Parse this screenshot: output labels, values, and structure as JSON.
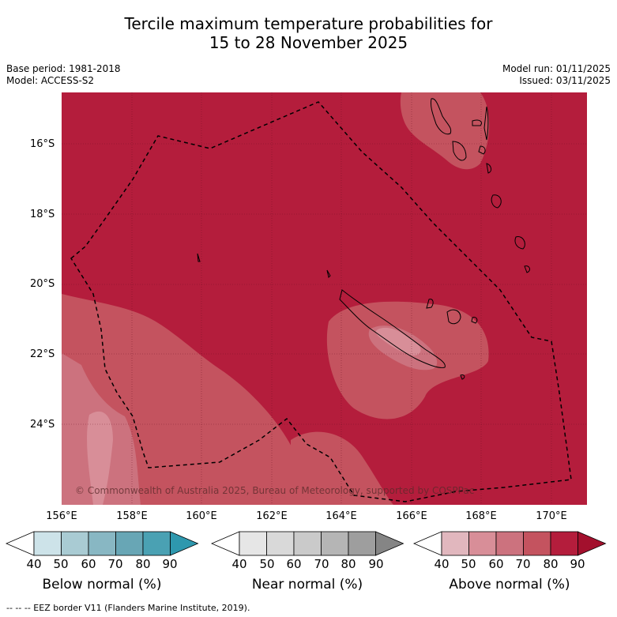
{
  "title_line1": "Tercile maximum temperature probabilities for",
  "title_line2": "15 to 28 November 2025",
  "meta_left": {
    "base_period": "Base period: 1981-2018",
    "model": "Model: ACCESS-S2"
  },
  "meta_right": {
    "model_run": "Model run: 01/11/2025",
    "issued": "Issued: 03/11/2025"
  },
  "latitude_labels": [
    "16°S",
    "18°S",
    "20°S",
    "22°S",
    "24°S"
  ],
  "longitude_labels": [
    "156°E",
    "158°E",
    "160°E",
    "162°E",
    "164°E",
    "166°E",
    "168°E",
    "170°E"
  ],
  "copyright": "© Commonwealth of Australia 2025, Bureau of Meteorology, supported by COSPPac",
  "colorbars": [
    {
      "label": "Below normal (%)",
      "ticks": [
        "40",
        "50",
        "60",
        "70",
        "80",
        "90"
      ],
      "colors": [
        "#ffffff",
        "#cde3e9",
        "#a9cbd3",
        "#88b7c3",
        "#68a6b5",
        "#4aa1b3",
        "#2e98ae"
      ]
    },
    {
      "label": "Near normal (%)",
      "ticks": [
        "40",
        "50",
        "60",
        "70",
        "80",
        "90"
      ],
      "colors": [
        "#ffffff",
        "#e6e6e6",
        "#d9d9d9",
        "#cacaca",
        "#b5b5b5",
        "#9e9e9e",
        "#858585"
      ]
    },
    {
      "label": "Above normal (%)",
      "ticks": [
        "40",
        "50",
        "60",
        "70",
        "80",
        "90"
      ],
      "colors": [
        "#ffffff",
        "#e1b7be",
        "#d88e98",
        "#cc727e",
        "#c4535f",
        "#b41d3c",
        "#a3102d"
      ]
    }
  ],
  "footnote": "--  --  -- EEZ border V11 (Flanders Marine Institute, 2019).",
  "map_colors": {
    "dominant": "#b41d3c",
    "level70": "#c4535f",
    "level60": "#cc727e",
    "level50": "#d88e98",
    "level40": "#e1b7be",
    "coast": "#000000",
    "eez": "#000000"
  }
}
